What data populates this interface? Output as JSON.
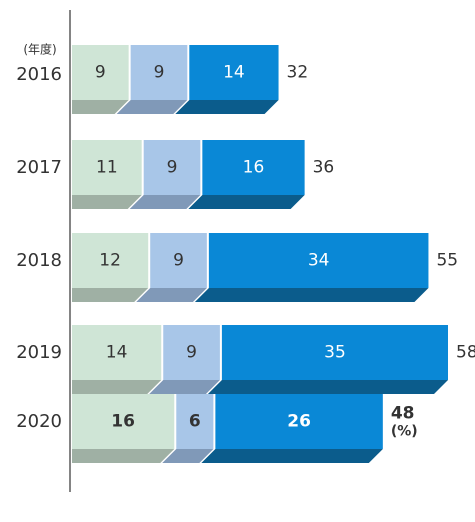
{
  "chart_data": {
    "type": "stacked-bar-horizontal",
    "category_axis_label": "(年度)",
    "unit_label": "(%)",
    "categories": [
      "2016",
      "2017",
      "2018",
      "2019",
      "2020"
    ],
    "series": [
      {
        "color": "#cfe5d6",
        "shade_color": "#9fb0a4",
        "values": [
          9,
          11,
          12,
          14,
          16
        ]
      },
      {
        "color": "#a8c6e8",
        "shade_color": "#8099b8",
        "values": [
          9,
          9,
          9,
          9,
          6
        ]
      },
      {
        "color": "#0a88d6",
        "shade_color": "#0b5c8c",
        "values": [
          14,
          16,
          34,
          35,
          26
        ]
      }
    ],
    "totals": [
      32,
      36,
      55,
      58,
      48
    ]
  }
}
